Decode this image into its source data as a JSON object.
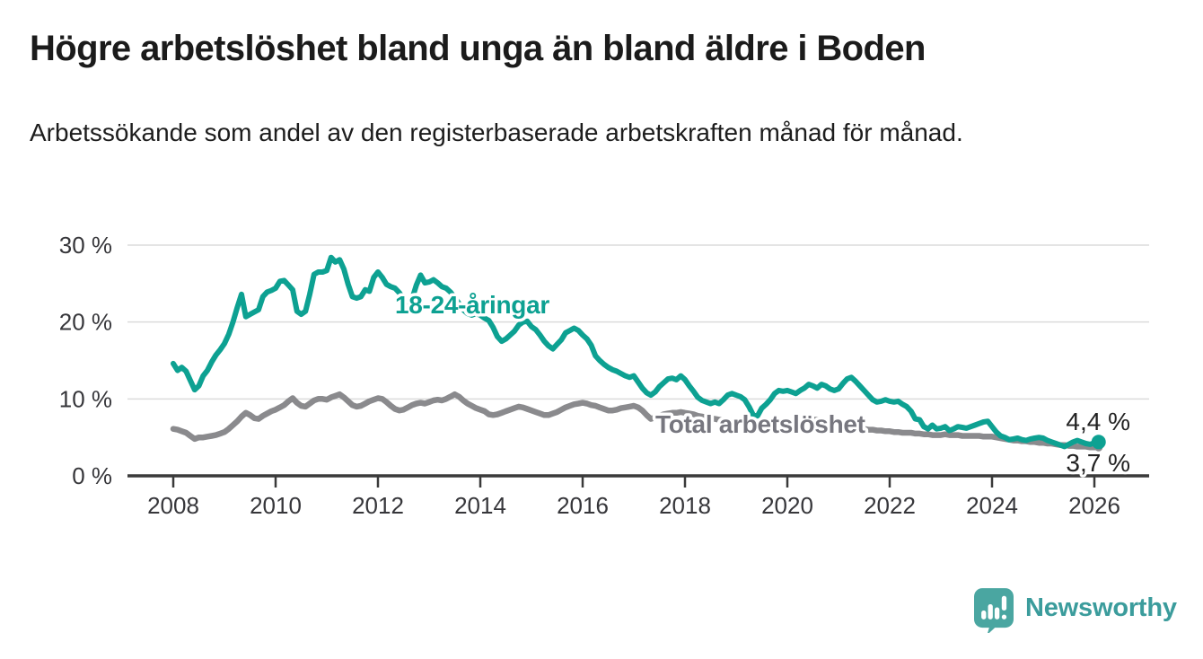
{
  "header": {
    "title": "Högre arbetslöshet bland unga än bland äldre i Boden",
    "subtitle": "Arbetssökande som andel av den registerbaserade arbetskraften månad för månad."
  },
  "footer": {
    "logo_text": "Newsworthy"
  },
  "colors": {
    "young_series": "#0da192",
    "total_series": "#8a8a8d",
    "total_label": "#77777f",
    "axis": "#3a3a3a",
    "gridline": "#dcdcdc",
    "logo_teal": "#4aa6a1"
  },
  "chart_data": {
    "type": "line",
    "title": "Högre arbetslöshet bland unga än bland äldre i Boden",
    "subtitle": "Arbetssökande som andel av den registerbaserade arbetskraften månad för månad.",
    "unit": "%",
    "grid": "horizontal",
    "legend": "inline-labels",
    "ylim": [
      0,
      30
    ],
    "x_start_year": 2008,
    "x_interval": "monthly",
    "x_end": "2026 (February)",
    "y_axis": {
      "ticks": [
        {
          "value": 30,
          "label": "30 %"
        },
        {
          "value": 20,
          "label": "20 %"
        },
        {
          "value": 10,
          "label": "10 %"
        },
        {
          "value": 0,
          "label": "0 %"
        }
      ]
    },
    "x_axis": {
      "ticks": [
        {
          "value": 2008,
          "label": "2008"
        },
        {
          "value": 2010,
          "label": "2010"
        },
        {
          "value": 2012,
          "label": "2012"
        },
        {
          "value": 2014,
          "label": "2014"
        },
        {
          "value": 2016,
          "label": "2016"
        },
        {
          "value": 2018,
          "label": "2018"
        },
        {
          "value": 2020,
          "label": "2020"
        },
        {
          "value": 2022,
          "label": "2022"
        },
        {
          "value": 2024,
          "label": "2024"
        },
        {
          "value": 2026,
          "label": "2026"
        }
      ]
    },
    "series": [
      {
        "name": "18-24-åringar",
        "color": "#0da192",
        "end_label": "4,4 %",
        "last_value": 4.4,
        "values_monthly": [
          14.6,
          13.7,
          14.1,
          13.6,
          12.4,
          11.2,
          11.7,
          13.0,
          13.7,
          14.8,
          15.7,
          16.4,
          17.2,
          18.4,
          20.0,
          21.9,
          23.6,
          20.7,
          21.0,
          21.3,
          21.6,
          23.3,
          23.9,
          24.1,
          24.4,
          25.3,
          25.4,
          24.8,
          24.2,
          21.4,
          21.0,
          21.4,
          23.6,
          26.2,
          26.5,
          26.5,
          26.7,
          28.4,
          27.8,
          28.1,
          26.9,
          24.9,
          23.3,
          23.1,
          23.3,
          24.2,
          24.0,
          25.8,
          26.5,
          25.8,
          24.9,
          24.6,
          24.4,
          23.8,
          23.0,
          21.8,
          23.0,
          24.8,
          26.1,
          25.1,
          25.2,
          25.5,
          25.1,
          24.6,
          24.4,
          23.9,
          23.2,
          22.4,
          21.6,
          21.1,
          20.9,
          21.1,
          20.9,
          20.5,
          20.2,
          19.3,
          18.1,
          17.5,
          17.8,
          18.3,
          18.8,
          19.6,
          20.0,
          20.1,
          19.4,
          19.0,
          18.3,
          17.5,
          16.9,
          16.5,
          17.1,
          17.7,
          18.6,
          18.9,
          19.2,
          18.9,
          18.3,
          17.8,
          17.0,
          15.6,
          15.0,
          14.5,
          14.1,
          13.8,
          13.6,
          13.3,
          13.0,
          12.8,
          13.0,
          12.2,
          11.4,
          10.8,
          10.5,
          10.9,
          11.6,
          12.1,
          12.6,
          12.7,
          12.5,
          13.0,
          12.5,
          11.7,
          11.0,
          10.2,
          9.8,
          9.6,
          9.4,
          9.6,
          9.4,
          9.9,
          10.5,
          10.7,
          10.5,
          10.3,
          9.9,
          9.0,
          7.9,
          7.8,
          8.8,
          9.3,
          9.9,
          10.7,
          11.1,
          11.0,
          11.1,
          10.9,
          10.7,
          11.1,
          11.4,
          11.9,
          11.7,
          11.4,
          11.9,
          11.7,
          11.3,
          11.1,
          11.3,
          12.0,
          12.6,
          12.8,
          12.3,
          11.7,
          11.1,
          10.5,
          9.9,
          9.6,
          9.7,
          9.9,
          9.7,
          9.6,
          9.7,
          9.3,
          9.0,
          8.4,
          7.4,
          7.3,
          6.4,
          6.1,
          6.6,
          6.1,
          6.2,
          6.4,
          5.9,
          6.1,
          6.4,
          6.3,
          6.2,
          6.4,
          6.6,
          6.8,
          7.0,
          7.1,
          6.4,
          5.7,
          5.2,
          5.0,
          4.7,
          4.8,
          4.9,
          4.7,
          4.6,
          4.8,
          4.9,
          5.0,
          4.9,
          4.6,
          4.4,
          4.2,
          4.0,
          3.8,
          4.1,
          4.4,
          4.6,
          4.4,
          4.2,
          4.1,
          4.3,
          4.4
        ]
      },
      {
        "name": "Total arbetslöshet",
        "color": "#8a8a8d",
        "end_label": "3,7 %",
        "last_value": 3.7,
        "values_monthly": [
          6.1,
          6.0,
          5.8,
          5.6,
          5.2,
          4.8,
          5.0,
          5.0,
          5.1,
          5.2,
          5.3,
          5.5,
          5.7,
          6.1,
          6.6,
          7.1,
          7.7,
          8.2,
          7.9,
          7.5,
          7.4,
          7.8,
          8.1,
          8.4,
          8.6,
          8.9,
          9.2,
          9.7,
          10.1,
          9.5,
          9.1,
          9.0,
          9.4,
          9.8,
          10.0,
          10.0,
          9.9,
          10.2,
          10.4,
          10.6,
          10.2,
          9.7,
          9.2,
          9.0,
          9.1,
          9.4,
          9.7,
          9.9,
          10.1,
          10.0,
          9.6,
          9.1,
          8.7,
          8.5,
          8.6,
          8.9,
          9.2,
          9.4,
          9.5,
          9.4,
          9.6,
          9.8,
          9.9,
          9.8,
          10.0,
          10.3,
          10.6,
          10.3,
          9.8,
          9.4,
          9.1,
          8.8,
          8.6,
          8.4,
          8.0,
          7.9,
          8.0,
          8.2,
          8.4,
          8.6,
          8.8,
          9.0,
          8.9,
          8.7,
          8.5,
          8.3,
          8.1,
          7.9,
          7.9,
          8.1,
          8.3,
          8.6,
          8.9,
          9.1,
          9.3,
          9.4,
          9.5,
          9.4,
          9.2,
          9.1,
          8.9,
          8.7,
          8.5,
          8.5,
          8.6,
          8.8,
          8.9,
          9.0,
          9.1,
          8.9,
          8.5,
          7.9,
          7.4,
          7.6,
          7.8,
          8.0,
          8.1,
          8.2,
          8.2,
          8.3,
          8.2,
          8.1,
          8.0,
          7.8,
          7.7,
          7.6,
          7.5,
          7.4,
          7.3,
          7.2,
          7.2,
          7.1,
          7.1,
          7.0,
          7.0,
          6.9,
          6.9,
          6.8,
          6.8,
          6.9,
          6.9,
          7.0,
          7.0,
          7.1,
          7.1,
          7.2,
          7.3,
          7.4,
          7.4,
          7.4,
          7.3,
          7.3,
          7.2,
          7.1,
          7.0,
          7.0,
          6.9,
          6.7,
          6.5,
          6.3,
          6.2,
          6.1,
          6.1,
          6.0,
          6.0,
          5.9,
          5.9,
          5.8,
          5.8,
          5.7,
          5.7,
          5.6,
          5.6,
          5.6,
          5.5,
          5.5,
          5.4,
          5.4,
          5.3,
          5.3,
          5.3,
          5.4,
          5.3,
          5.3,
          5.3,
          5.2,
          5.2,
          5.2,
          5.2,
          5.2,
          5.1,
          5.1,
          5.1,
          5.0,
          4.9,
          4.8,
          4.7,
          4.6,
          4.6,
          4.5,
          4.5,
          4.4,
          4.4,
          4.3,
          4.3,
          4.2,
          4.2,
          4.1,
          4.0,
          4.0,
          3.9,
          3.9,
          3.8,
          3.8,
          3.8,
          3.7,
          3.7,
          3.7
        ]
      }
    ]
  }
}
